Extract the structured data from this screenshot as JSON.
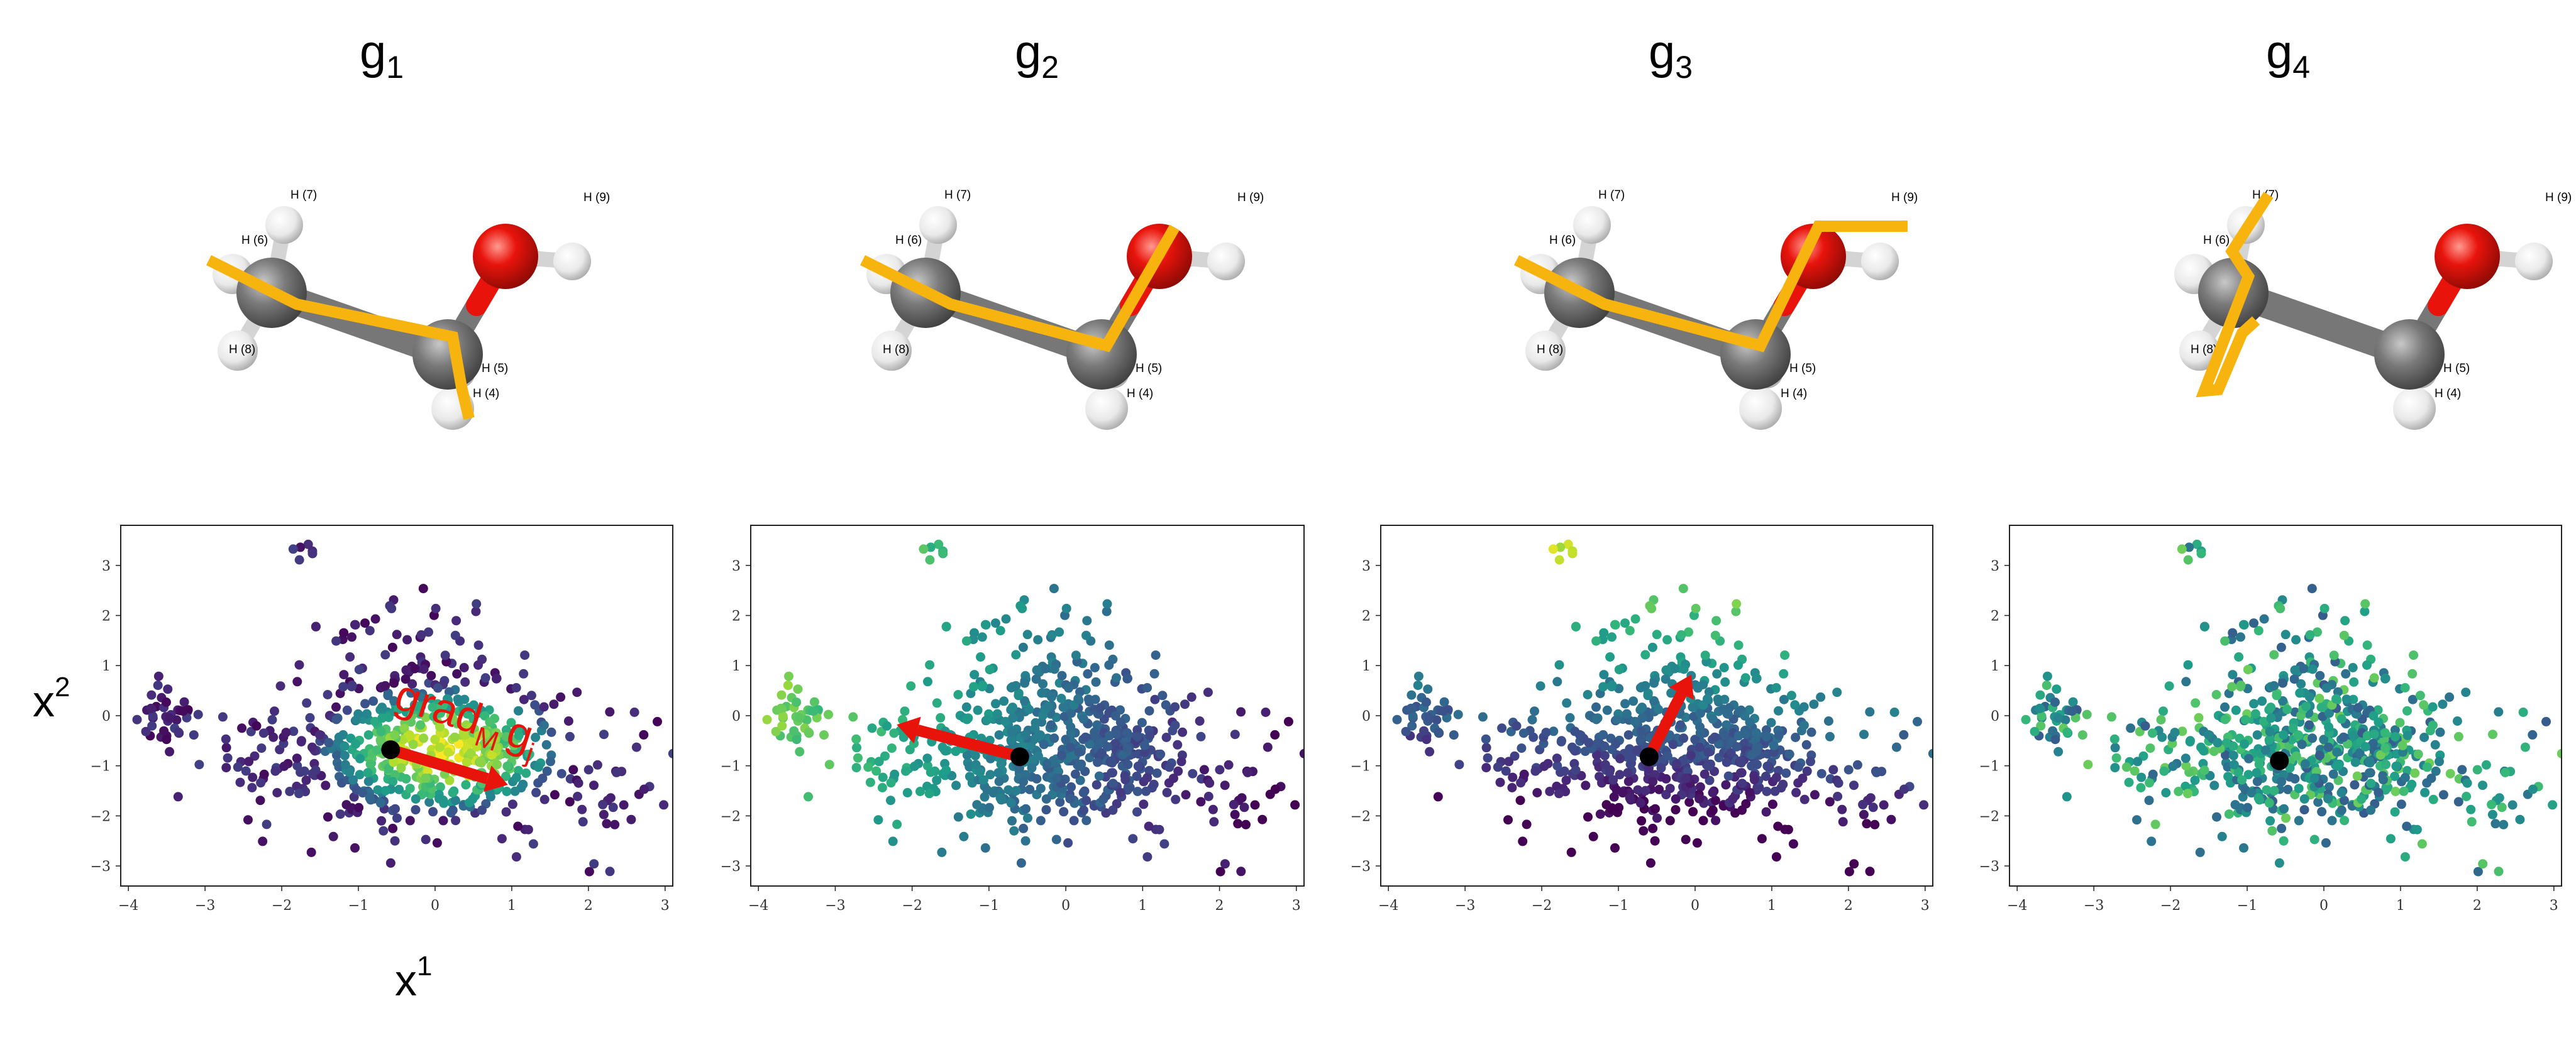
{
  "figure": {
    "x_axis_title": "x",
    "x_axis_sup": "1",
    "y_axis_title": "x",
    "y_axis_sup": "2",
    "annotation_grad": "grad",
    "annotation_grad_sub": "M",
    "annotation_g": "g",
    "annotation_g_sub": "j"
  },
  "panels": [
    {
      "title": "g",
      "title_sub": "1"
    },
    {
      "title": "g",
      "title_sub": "2"
    },
    {
      "title": "g",
      "title_sub": "3"
    },
    {
      "title": "g",
      "title_sub": "4"
    }
  ],
  "molecule": {
    "labels": [
      "H (7)",
      "H (6)",
      "H (8)",
      "H (5)",
      "H (4)",
      "H (9)"
    ],
    "atom_colors": {
      "carbon": "#6b6b6b",
      "oxygen": "#e8140c",
      "hydrogen": "#f2f2f2"
    },
    "highlight_color": "#f7b40f"
  },
  "chart_data": [
    {
      "type": "scatter",
      "title": "g1",
      "xlabel": "x1",
      "ylabel": "x2",
      "xlim": [
        -4.1,
        3.1
      ],
      "ylim": [
        -3.4,
        3.8
      ],
      "xticks": [
        -4,
        -3,
        -2,
        -1,
        0,
        1,
        2,
        3
      ],
      "yticks": [
        -3,
        -2,
        -1,
        0,
        1,
        2,
        3
      ],
      "colormap": "viridis",
      "color_by": "g1",
      "color_trend": "highest in the central cloud around x1 = -1 to 1, lowest at the far left group near x1 = -3.5 and at the top group near (-1.7, 3.2)",
      "marked_point": {
        "x": -0.58,
        "y": -0.68
      },
      "arrow": {
        "from": [
          -0.58,
          -0.68
        ],
        "to": [
          0.95,
          -1.38
        ],
        "label": "grad_M g_j"
      },
      "point_cloud": [
        {
          "cx": 0.0,
          "cy": -0.7,
          "sx": 0.9,
          "sy": 0.75,
          "n": 520
        },
        {
          "cx": -0.3,
          "cy": 1.2,
          "sx": 0.55,
          "sy": 0.7,
          "n": 70
        },
        {
          "cx": -3.5,
          "cy": 0.0,
          "sx": 0.2,
          "sy": 0.35,
          "n": 40
        },
        {
          "cx": 2.2,
          "cy": -1.5,
          "sx": 0.35,
          "sy": 0.4,
          "n": 24
        },
        {
          "cx": -1.7,
          "cy": 3.25,
          "sx": 0.1,
          "sy": 0.1,
          "n": 6
        },
        {
          "cx": 2.05,
          "cy": -3.05,
          "sx": 0.15,
          "sy": 0.06,
          "n": 3
        },
        {
          "cx": -2.2,
          "cy": -1.1,
          "sx": 0.5,
          "sy": 0.6,
          "n": 50
        }
      ]
    },
    {
      "type": "scatter",
      "title": "g2",
      "xlabel": "x1",
      "ylabel": "x2",
      "xlim": [
        -4.1,
        3.1
      ],
      "ylim": [
        -3.4,
        3.8
      ],
      "xticks": [
        -4,
        -3,
        -2,
        -1,
        0,
        1,
        2,
        3
      ],
      "yticks": [
        -3,
        -2,
        -1,
        0,
        1,
        2,
        3
      ],
      "colormap": "viridis",
      "color_by": "g2",
      "color_trend": "decreases from left (yellow-green near x1 = -3.5, top group yellow) to right (dark purple near x1 = 2.5)",
      "marked_point": {
        "x": -0.6,
        "y": -0.82
      },
      "arrow": {
        "from": [
          -0.6,
          -0.82
        ],
        "to": [
          -2.2,
          -0.18
        ]
      },
      "point_cloud": [
        {
          "cx": 0.0,
          "cy": -0.7,
          "sx": 0.9,
          "sy": 0.75,
          "n": 520
        },
        {
          "cx": -0.3,
          "cy": 1.2,
          "sx": 0.55,
          "sy": 0.7,
          "n": 70
        },
        {
          "cx": -3.5,
          "cy": 0.0,
          "sx": 0.2,
          "sy": 0.35,
          "n": 40
        },
        {
          "cx": 2.2,
          "cy": -1.5,
          "sx": 0.35,
          "sy": 0.4,
          "n": 24
        },
        {
          "cx": -1.7,
          "cy": 3.25,
          "sx": 0.1,
          "sy": 0.1,
          "n": 6
        },
        {
          "cx": 2.05,
          "cy": -3.05,
          "sx": 0.15,
          "sy": 0.06,
          "n": 3
        },
        {
          "cx": -2.2,
          "cy": -1.1,
          "sx": 0.5,
          "sy": 0.6,
          "n": 50
        }
      ]
    },
    {
      "type": "scatter",
      "title": "g3",
      "xlabel": "x1",
      "ylabel": "x2",
      "xlim": [
        -4.1,
        3.1
      ],
      "ylim": [
        -3.4,
        3.8
      ],
      "xticks": [
        -4,
        -3,
        -2,
        -1,
        0,
        1,
        2,
        3
      ],
      "yticks": [
        -3,
        -2,
        -1,
        0,
        1,
        2,
        3
      ],
      "colormap": "viridis",
      "color_by": "g3",
      "color_trend": "increases upward: dark purple in the lower cloud, green-yellow toward the top near x1 = 0, y = 2.5, top group yellow",
      "marked_point": {
        "x": -0.6,
        "y": -0.82
      },
      "arrow": {
        "from": [
          -0.6,
          -0.82
        ],
        "to": [
          -0.05,
          0.82
        ]
      },
      "point_cloud": [
        {
          "cx": 0.0,
          "cy": -0.7,
          "sx": 0.9,
          "sy": 0.75,
          "n": 520
        },
        {
          "cx": -0.3,
          "cy": 1.2,
          "sx": 0.55,
          "sy": 0.7,
          "n": 70
        },
        {
          "cx": -3.5,
          "cy": 0.0,
          "sx": 0.2,
          "sy": 0.35,
          "n": 40
        },
        {
          "cx": 2.2,
          "cy": -1.5,
          "sx": 0.35,
          "sy": 0.4,
          "n": 24
        },
        {
          "cx": -1.7,
          "cy": 3.25,
          "sx": 0.1,
          "sy": 0.1,
          "n": 6
        },
        {
          "cx": 2.05,
          "cy": -3.05,
          "sx": 0.15,
          "sy": 0.06,
          "n": 3
        },
        {
          "cx": -2.2,
          "cy": -1.1,
          "sx": 0.5,
          "sy": 0.6,
          "n": 50
        }
      ]
    },
    {
      "type": "scatter",
      "title": "g4",
      "xlabel": "x1",
      "ylabel": "x2",
      "xlim": [
        -4.1,
        3.1
      ],
      "ylim": [
        -3.4,
        3.8
      ],
      "xticks": [
        -4,
        -3,
        -2,
        -1,
        0,
        1,
        2,
        3
      ],
      "yticks": [
        -3,
        -2,
        -1,
        0,
        1,
        2,
        3
      ],
      "colormap": "viridis",
      "color_by": "g4",
      "color_trend": "mixed blue-teal with scattered green points; no clear gradient",
      "marked_point": {
        "x": -0.58,
        "y": -0.9
      },
      "point_cloud": [
        {
          "cx": 0.0,
          "cy": -0.7,
          "sx": 0.9,
          "sy": 0.75,
          "n": 520
        },
        {
          "cx": -0.3,
          "cy": 1.2,
          "sx": 0.55,
          "sy": 0.7,
          "n": 70
        },
        {
          "cx": -3.5,
          "cy": 0.0,
          "sx": 0.2,
          "sy": 0.35,
          "n": 40
        },
        {
          "cx": 2.2,
          "cy": -1.5,
          "sx": 0.35,
          "sy": 0.4,
          "n": 24
        },
        {
          "cx": -1.7,
          "cy": 3.25,
          "sx": 0.1,
          "sy": 0.1,
          "n": 6
        },
        {
          "cx": 2.05,
          "cy": -3.05,
          "sx": 0.15,
          "sy": 0.06,
          "n": 3
        },
        {
          "cx": -2.2,
          "cy": -1.1,
          "sx": 0.5,
          "sy": 0.6,
          "n": 50
        }
      ]
    }
  ]
}
